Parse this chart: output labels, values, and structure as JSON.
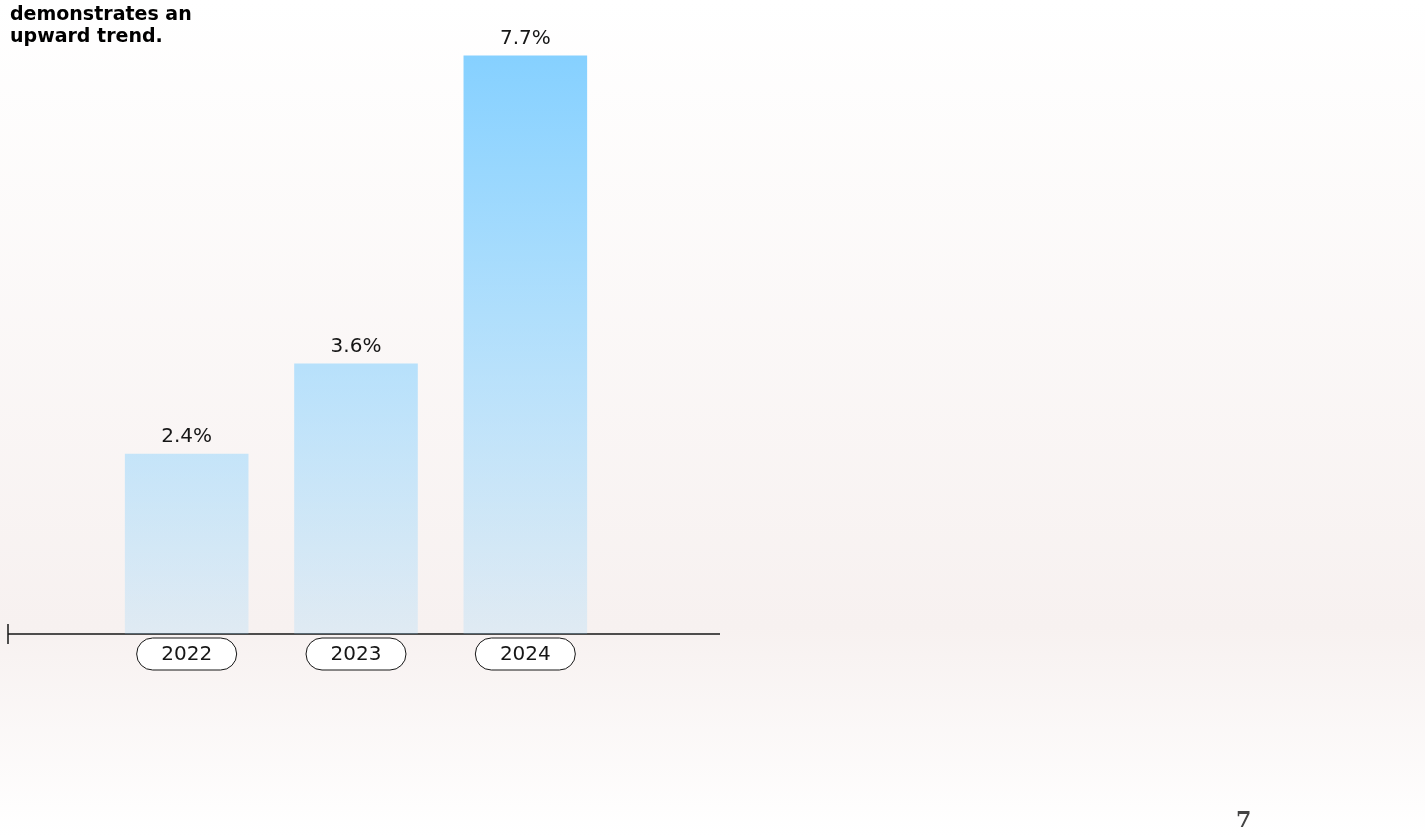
{
  "chart_data": {
    "type": "bar",
    "title": "demonstrates an upward trend.",
    "categories": [
      "2022",
      "2023",
      "2024"
    ],
    "series": [
      {
        "type": "bar",
        "color": "#82cfff",
        "values": [
          2.4,
          3.6,
          7.7
        ],
        "value_labels": [
          "2.4%",
          "3.6%",
          "7.7%"
        ]
      }
    ],
    "annotations": [
      "7"
    ]
  }
}
